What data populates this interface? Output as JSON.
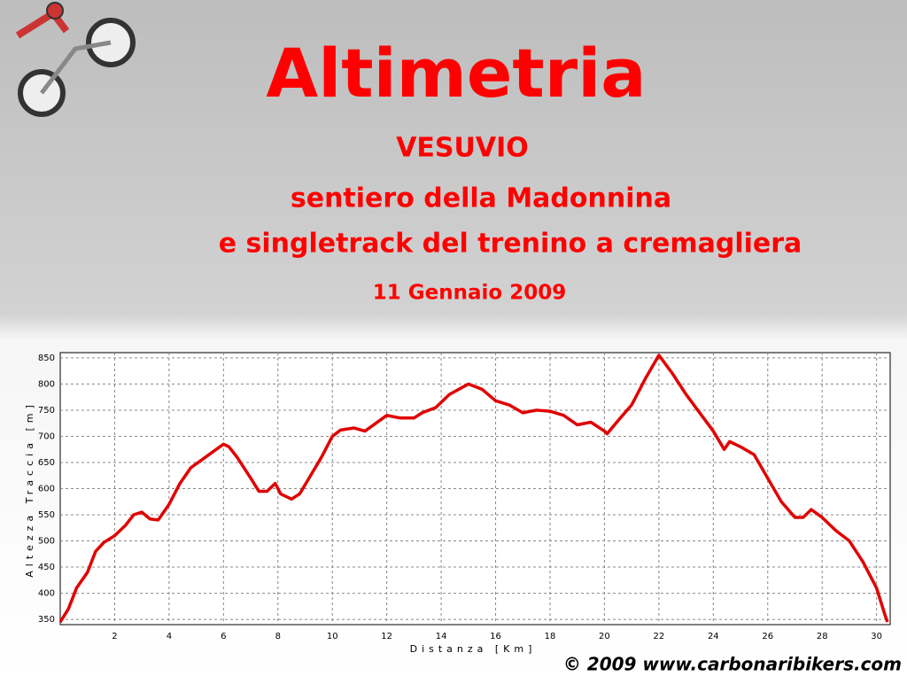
{
  "header": {
    "title": "Altimetria",
    "lines": [
      "VESUVIO",
      "sentiero della Madonnina",
      "e singletrack del trenino a cremagliera"
    ],
    "date": "11 Gennaio 2009",
    "copyright": "© 2009 www.carbonaribikers.com"
  },
  "chart_data": {
    "type": "line",
    "x_label": "Distanza [Km]",
    "y_label": "Altezza Traccia [m]",
    "x": [
      0,
      0.3,
      0.6,
      1,
      1.3,
      1.6,
      2,
      2.4,
      2.7,
      3,
      3.3,
      3.6,
      4,
      4.4,
      4.8,
      5.2,
      5.6,
      6,
      6.2,
      6.5,
      7,
      7.3,
      7.6,
      7.9,
      8.1,
      8.5,
      8.8,
      9.2,
      9.6,
      10,
      10.3,
      10.8,
      11.2,
      11.6,
      12,
      12.5,
      13,
      13.3,
      13.8,
      14.3,
      15,
      15.5,
      16,
      16.5,
      17,
      17.5,
      18,
      18.5,
      19,
      19.5,
      20,
      20.1,
      20.5,
      21,
      21.5,
      22,
      22.5,
      23,
      23.5,
      24,
      24.4,
      24.6,
      25,
      25.5,
      26,
      26.5,
      27,
      27.3,
      27.6,
      28,
      28.5,
      29,
      29.5,
      30,
      30.3,
      30.4
    ],
    "values": [
      345,
      370,
      410,
      440,
      480,
      497,
      510,
      530,
      550,
      555,
      542,
      540,
      570,
      610,
      640,
      655,
      670,
      685,
      680,
      660,
      620,
      595,
      595,
      610,
      590,
      580,
      590,
      625,
      660,
      700,
      712,
      716,
      710,
      725,
      740,
      735,
      735,
      745,
      755,
      780,
      800,
      790,
      768,
      760,
      745,
      750,
      748,
      740,
      722,
      727,
      710,
      705,
      730,
      760,
      810,
      855,
      820,
      780,
      745,
      710,
      675,
      690,
      680,
      665,
      620,
      575,
      545,
      545,
      560,
      545,
      520,
      500,
      460,
      410,
      360,
      345
    ],
    "color": "#e00000",
    "xlim": [
      0,
      30.5
    ],
    "ylim": [
      340,
      860
    ],
    "xticks": [
      2,
      4,
      6,
      8,
      10,
      12,
      14,
      16,
      18,
      20,
      22,
      24,
      26,
      28,
      30
    ],
    "yticks": [
      350,
      400,
      450,
      500,
      550,
      600,
      650,
      700,
      750,
      800,
      850
    ],
    "grid": true
  }
}
